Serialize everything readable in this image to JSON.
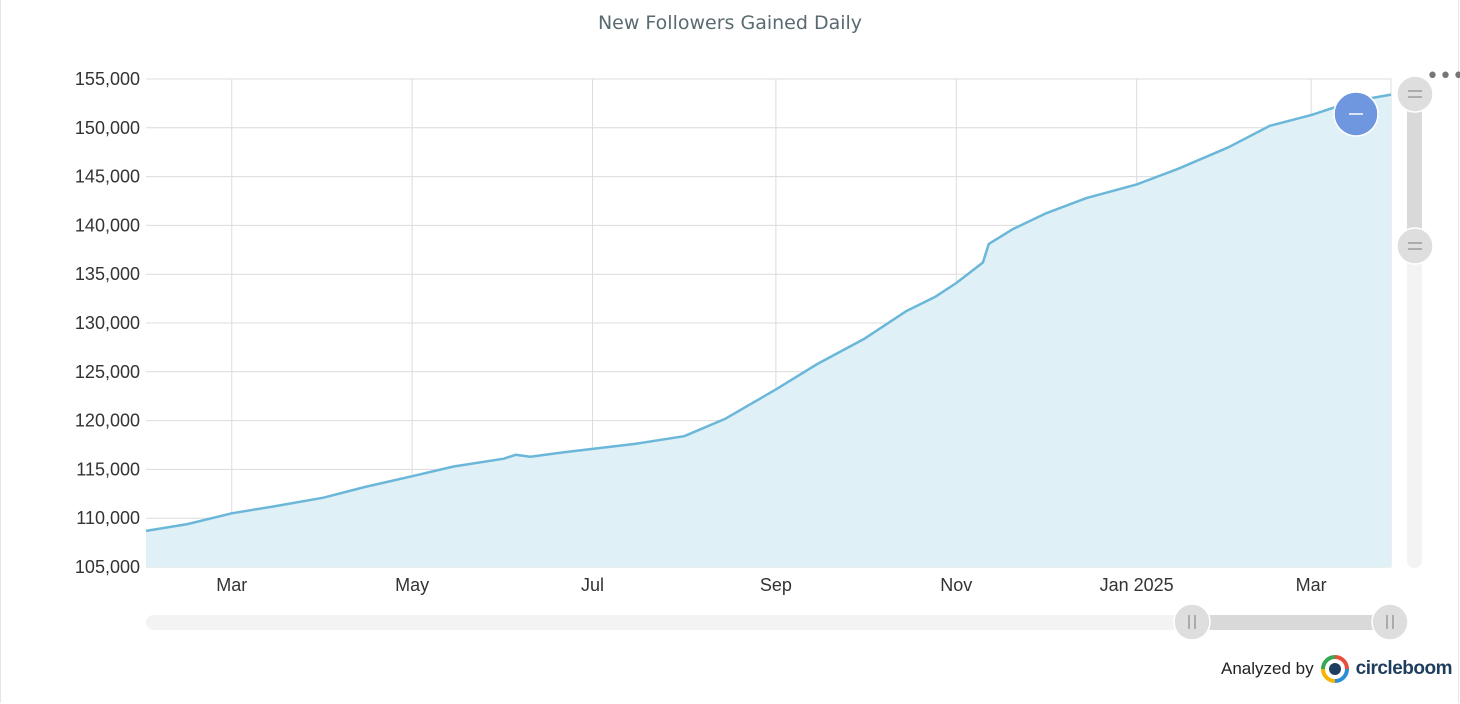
{
  "title": "New Followers Gained Daily",
  "attribution": {
    "prefix": "Analyzed by",
    "brand": "circleboom"
  },
  "colors": {
    "line": "#6bb7d9",
    "fill": "#dff0f7",
    "grid": "#dcdcdc",
    "scroll_handle": "#6f97e0"
  },
  "icons": {
    "menu": "more-horizontal-icon",
    "brand_logo": "circleboom-logo-icon",
    "handle": "grip-lines-icon"
  },
  "chart_data": {
    "type": "area",
    "title": "New Followers Gained Daily",
    "xlabel": "",
    "ylabel": "",
    "xlim": [
      "2024-02-01",
      "2025-03-28"
    ],
    "ylim": [
      105000,
      155000
    ],
    "grid": true,
    "y_ticks": [
      "105,000",
      "110,000",
      "115,000",
      "120,000",
      "125,000",
      "130,000",
      "135,000",
      "140,000",
      "145,000",
      "150,000",
      "155,000"
    ],
    "x_ticks": [
      {
        "date": "2024-03-01",
        "label": "Mar"
      },
      {
        "date": "2024-05-01",
        "label": "May"
      },
      {
        "date": "2024-07-01",
        "label": "Jul"
      },
      {
        "date": "2024-09-01",
        "label": "Sep"
      },
      {
        "date": "2024-11-01",
        "label": "Nov"
      },
      {
        "date": "2025-01-01",
        "label": "Jan 2025"
      },
      {
        "date": "2025-03-01",
        "label": "Mar"
      }
    ],
    "series": [
      {
        "points": [
          [
            "2024-02-01",
            108700
          ],
          [
            "2024-02-15",
            109400
          ],
          [
            "2024-03-01",
            110500
          ],
          [
            "2024-03-15",
            111200
          ],
          [
            "2024-04-01",
            112100
          ],
          [
            "2024-04-15",
            113200
          ],
          [
            "2024-05-01",
            114300
          ],
          [
            "2024-05-15",
            115300
          ],
          [
            "2024-06-01",
            116100
          ],
          [
            "2024-06-05",
            116500
          ],
          [
            "2024-06-10",
            116300
          ],
          [
            "2024-06-20",
            116700
          ],
          [
            "2024-07-01",
            117100
          ],
          [
            "2024-07-15",
            117600
          ],
          [
            "2024-08-01",
            118400
          ],
          [
            "2024-08-15",
            120200
          ],
          [
            "2024-09-01",
            123200
          ],
          [
            "2024-09-15",
            125800
          ],
          [
            "2024-10-01",
            128400
          ],
          [
            "2024-10-15",
            131200
          ],
          [
            "2024-10-25",
            132700
          ],
          [
            "2024-11-01",
            134100
          ],
          [
            "2024-11-10",
            136200
          ],
          [
            "2024-11-12",
            138100
          ],
          [
            "2024-11-20",
            139600
          ],
          [
            "2024-12-01",
            141200
          ],
          [
            "2024-12-15",
            142800
          ],
          [
            "2025-01-01",
            144200
          ],
          [
            "2025-01-15",
            145800
          ],
          [
            "2025-02-01",
            148000
          ],
          [
            "2025-02-15",
            150200
          ],
          [
            "2025-03-01",
            151300
          ],
          [
            "2025-03-15",
            152700
          ],
          [
            "2025-03-28",
            153400
          ]
        ]
      }
    ]
  }
}
